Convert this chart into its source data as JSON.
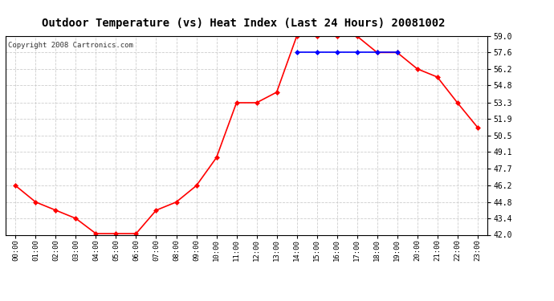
{
  "title": "Outdoor Temperature (vs) Heat Index (Last 24 Hours) 20081002",
  "copyright": "Copyright 2008 Cartronics.com",
  "hours": [
    "00:00",
    "01:00",
    "02:00",
    "03:00",
    "04:00",
    "05:00",
    "06:00",
    "07:00",
    "08:00",
    "09:00",
    "10:00",
    "11:00",
    "12:00",
    "13:00",
    "14:00",
    "15:00",
    "16:00",
    "17:00",
    "18:00",
    "19:00",
    "20:00",
    "21:00",
    "22:00",
    "23:00"
  ],
  "temp": [
    46.2,
    44.8,
    44.1,
    43.4,
    42.1,
    42.1,
    42.1,
    44.1,
    44.8,
    46.2,
    48.6,
    53.3,
    53.3,
    54.2,
    59.0,
    59.0,
    59.0,
    59.0,
    57.6,
    57.6,
    56.2,
    55.5,
    53.3,
    51.2
  ],
  "heat_index": [
    null,
    null,
    null,
    null,
    null,
    null,
    null,
    null,
    null,
    null,
    null,
    null,
    null,
    null,
    57.6,
    57.6,
    57.6,
    57.6,
    57.6,
    57.6,
    null,
    null,
    null,
    null
  ],
  "ylim_min": 42.0,
  "ylim_max": 59.0,
  "yticks": [
    42.0,
    43.4,
    44.8,
    46.2,
    47.7,
    49.1,
    50.5,
    51.9,
    53.3,
    54.8,
    56.2,
    57.6,
    59.0
  ],
  "temp_color": "#FF0000",
  "heat_color": "#0000FF",
  "marker": "D",
  "marker_size": 3,
  "bg_color": "#FFFFFF",
  "grid_color": "#C8C8C8",
  "title_fontsize": 10,
  "copyright_fontsize": 6.5
}
